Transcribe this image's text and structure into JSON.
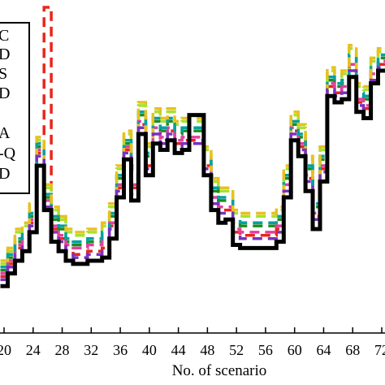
{
  "chart_data": {
    "type": "line",
    "title": "",
    "xlabel": "No. of scenario",
    "ylabel": "",
    "xlim": [
      20,
      72
    ],
    "xticks": [
      20,
      24,
      28,
      32,
      36,
      40,
      44,
      48,
      52,
      56,
      60,
      64,
      68,
      72
    ],
    "xtick_labels": [
      "20",
      "24",
      "28",
      "32",
      "36",
      "40",
      "44",
      "48",
      "52",
      "56",
      "60",
      "64",
      "68",
      "72"
    ],
    "ylim": [
      0,
      100
    ],
    "grid": false,
    "legend": {
      "placement": "top-left",
      "entries": [
        "C",
        "D",
        "S",
        "D",
        "",
        "A",
        "-Q",
        "D"
      ]
    },
    "x": [
      20,
      21,
      22,
      23,
      24,
      25,
      26,
      27,
      28,
      29,
      30,
      31,
      32,
      33,
      34,
      35,
      36,
      37,
      38,
      39,
      40,
      41,
      42,
      43,
      44,
      45,
      46,
      47,
      48,
      49,
      50,
      51,
      52,
      53,
      54,
      55,
      56,
      57,
      58,
      59,
      60,
      61,
      62,
      63,
      64,
      65,
      66,
      67,
      68,
      69,
      70,
      71,
      72
    ],
    "series": [
      {
        "name": "",
        "color": "#000000",
        "style": "solid-step",
        "values": [
          2,
          6,
          10,
          13,
          19,
          40,
          26,
          16,
          13,
          10,
          9,
          9,
          10,
          10,
          11,
          17,
          30,
          42,
          29,
          50,
          37,
          47,
          45,
          48,
          44,
          45,
          56,
          56,
          37,
          26,
          22,
          23,
          15,
          14,
          14,
          14,
          14,
          14,
          16,
          30,
          48,
          43,
          32,
          20,
          35,
          62,
          60,
          61,
          68,
          57,
          55,
          66,
          70
        ]
      },
      {
        "name": "",
        "color": "#e8261c",
        "style": "dashed-step",
        "values": [
          5,
          9,
          14,
          16,
          22,
          44,
          90,
          20,
          17,
          13,
          12,
          12,
          13,
          13,
          14,
          21,
          33,
          45,
          33,
          53,
          40,
          51,
          48,
          51,
          47,
          48,
          48,
          48,
          40,
          29,
          26,
          26,
          19,
          18,
          18,
          18,
          18,
          18,
          20,
          33,
          51,
          46,
          36,
          24,
          39,
          65,
          63,
          64,
          71,
          60,
          58,
          68,
          72
        ]
      },
      {
        "name": "",
        "color": "#1c8c1c",
        "style": "dashed-step",
        "values": [
          7,
          11,
          16,
          18,
          24,
          46,
          30,
          23,
          20,
          16,
          15,
          15,
          16,
          16,
          18,
          24,
          36,
          47,
          36,
          56,
          43,
          54,
          51,
          54,
          50,
          51,
          51,
          51,
          42,
          32,
          29,
          29,
          22,
          21,
          21,
          21,
          21,
          21,
          23,
          36,
          53,
          49,
          39,
          27,
          42,
          67,
          65,
          66,
          74,
          62,
          61,
          70,
          74
        ]
      },
      {
        "name": "",
        "color": "#a6e22e",
        "style": "dashed-step",
        "values": [
          9,
          13,
          19,
          21,
          27,
          48,
          33,
          26,
          23,
          19,
          18,
          18,
          19,
          19,
          21,
          27,
          39,
          50,
          39,
          59,
          46,
          57,
          54,
          57,
          53,
          54,
          54,
          54,
          45,
          35,
          32,
          32,
          25,
          24,
          24,
          24,
          24,
          24,
          26,
          39,
          56,
          52,
          42,
          30,
          45,
          70,
          68,
          69,
          77,
          65,
          64,
          73,
          76
        ]
      },
      {
        "name": "",
        "color": "#e040a0",
        "style": "dashed-step",
        "values": [
          6,
          10,
          15,
          17,
          23,
          45,
          29,
          21,
          18,
          15,
          14,
          14,
          15,
          15,
          17,
          22,
          34,
          46,
          34,
          54,
          41,
          52,
          49,
          52,
          48,
          49,
          49,
          49,
          41,
          30,
          27,
          27,
          20,
          19,
          19,
          19,
          19,
          19,
          21,
          34,
          52,
          47,
          37,
          25,
          40,
          66,
          64,
          65,
          72,
          61,
          59,
          69,
          73
        ]
      },
      {
        "name": "",
        "color": "#00a0a0",
        "style": "dashed-step",
        "values": [
          8,
          12,
          17,
          19,
          25,
          47,
          31,
          24,
          21,
          17,
          16,
          16,
          17,
          17,
          19,
          25,
          37,
          48,
          37,
          57,
          44,
          55,
          52,
          55,
          51,
          52,
          52,
          52,
          43,
          33,
          30,
          30,
          23,
          22,
          22,
          22,
          22,
          22,
          24,
          37,
          54,
          50,
          40,
          28,
          43,
          68,
          66,
          67,
          75,
          63,
          62,
          71,
          75
        ]
      },
      {
        "name": "",
        "color": "#e8c020",
        "style": "dashed-step",
        "values": [
          10,
          14,
          20,
          22,
          28,
          49,
          34,
          27,
          24,
          20,
          19,
          19,
          20,
          20,
          22,
          28,
          40,
          51,
          40,
          60,
          47,
          58,
          55,
          58,
          54,
          55,
          55,
          55,
          46,
          36,
          33,
          33,
          26,
          25,
          25,
          25,
          25,
          25,
          27,
          40,
          57,
          53,
          43,
          31,
          46,
          71,
          69,
          70,
          78,
          66,
          65,
          74,
          77
        ]
      },
      {
        "name": "",
        "color": "#7a30c0",
        "style": "dashed-step",
        "values": [
          4,
          8,
          12,
          15,
          21,
          43,
          27,
          19,
          16,
          12,
          11,
          11,
          12,
          12,
          13,
          20,
          32,
          44,
          31,
          52,
          39,
          50,
          47,
          50,
          46,
          47,
          47,
          47,
          39,
          28,
          25,
          25,
          18,
          17,
          17,
          17,
          17,
          17,
          19,
          32,
          50,
          45,
          35,
          23,
          38,
          64,
          62,
          63,
          70,
          59,
          57,
          67,
          71
        ]
      }
    ]
  }
}
